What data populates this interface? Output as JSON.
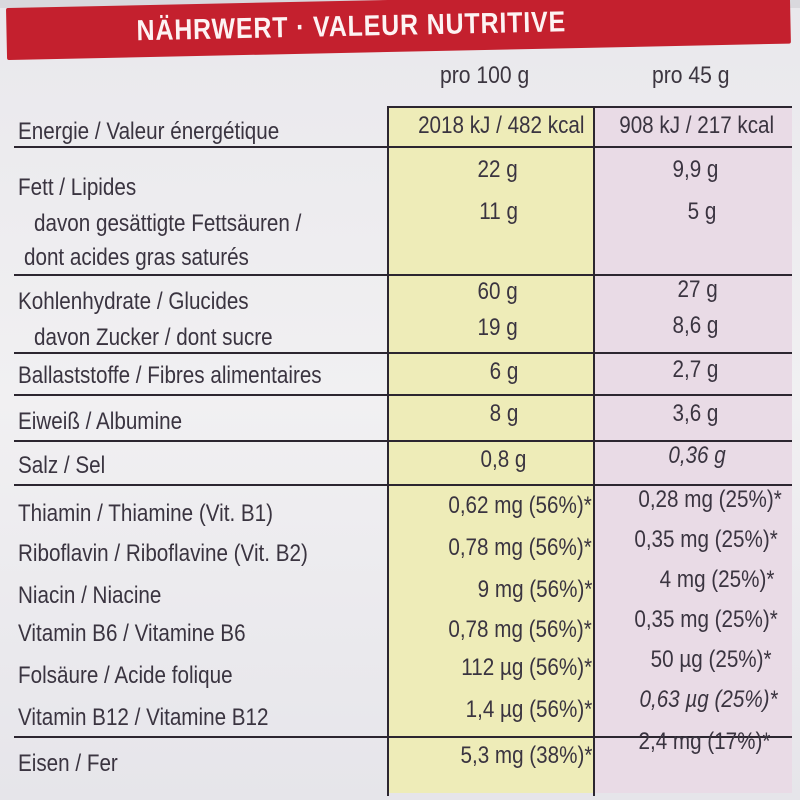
{
  "header": {
    "title": "NÄHRWERT · VALEUR NUTRITIVE"
  },
  "columns": {
    "per100": "pro 100 g",
    "per45": "pro 45 g"
  },
  "rows": [
    {
      "label": "Energie / Valeur énergétique",
      "per100": "2018 kJ / 482 kcal",
      "per45": "908 kJ / 217 kcal"
    },
    {
      "label": "Fett / Lipides",
      "per100": "22 g",
      "per45": "9,9 g"
    },
    {
      "label": "davon gesättigte Fettsäuren /",
      "label2": "dont acides gras saturés",
      "per100": "11 g",
      "per45": "5 g"
    },
    {
      "label": "Kohlenhydrate / Glucides",
      "per100": "60 g",
      "per45": "27 g"
    },
    {
      "label": "davon Zucker / dont sucre",
      "per100": "19 g",
      "per45": "8,6 g"
    },
    {
      "label": "Ballaststoffe / Fibres alimentaires",
      "per100": "6 g",
      "per45": "2,7 g"
    },
    {
      "label": "Eiweiß / Albumine",
      "per100": "8 g",
      "per45": "3,6 g"
    },
    {
      "label": "Salz / Sel",
      "per100": "0,8 g",
      "per45": "0,36 g"
    },
    {
      "label": "Thiamin / Thiamine (Vit. B1)",
      "per100": "0,62 mg (56%)*",
      "per45": "0,28 mg (25%)*"
    },
    {
      "label": "Riboflavin / Riboflavine (Vit. B2)",
      "per100": "0,78 mg (56%)*",
      "per45": "0,35 mg (25%)*"
    },
    {
      "label": "Niacin / Niacine",
      "per100": "9 mg (56%)*",
      "per45": "4 mg (25%)*"
    },
    {
      "label": "Vitamin B6 / Vitamine B6",
      "per100": "0,78 mg (56%)*",
      "per45": "0,35 mg (25%)*"
    },
    {
      "label": "Folsäure / Acide folique",
      "per100": "112  µg (56%)*",
      "per45": "50  µg (25%)*"
    },
    {
      "label": "Vitamin B12 / Vitamine B12",
      "per100": "1,4  µg (56%)*",
      "per45": "0,63  µg (25%)*"
    },
    {
      "label": "Eisen / Fer",
      "per100": "5,3 mg (38%)*",
      "per45": "2,4 mg (17%)*"
    }
  ]
}
